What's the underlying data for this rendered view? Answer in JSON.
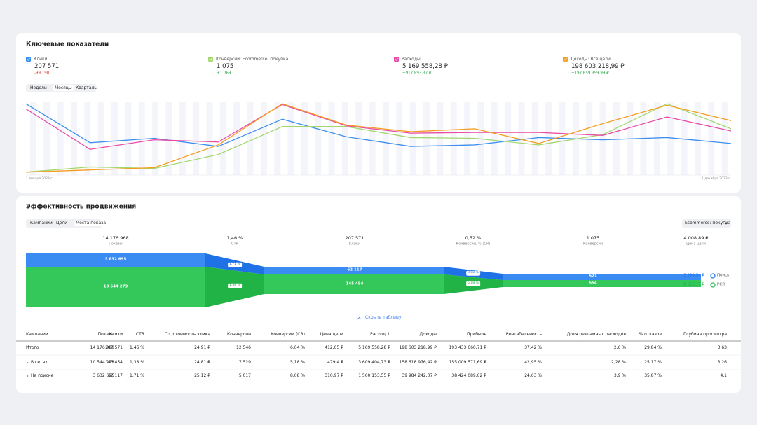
{
  "key_metrics": {
    "title": "Ключевые показатели",
    "tabs": [
      "Недели",
      "Месяцы",
      "Кварталы"
    ]
  },
  "chart_data": {
    "type": "line",
    "categories": [
      "1 января 2023 г.",
      null,
      null,
      null,
      null,
      null,
      null,
      null,
      null,
      null,
      null,
      "1 декабря 2023 г."
    ],
    "ylim": [
      0,
      100
    ],
    "series": [
      {
        "name": "Клики",
        "color": "#3d8fef",
        "total": "207 571",
        "delta": "-99 190",
        "values": [
          97,
          44,
          50,
          39,
          76,
          52,
          39,
          41,
          51,
          48,
          51,
          43
        ]
      },
      {
        "name": "Конверсии: Ecommerce: покупка",
        "color": "#a3d76e",
        "total": "1 075",
        "delta": "+1 069",
        "values": [
          4,
          11,
          9,
          28,
          66,
          66,
          51,
          50,
          41,
          55,
          97,
          63
        ]
      },
      {
        "name": "Расходы",
        "color": "#e84aa5",
        "total": "5 169 558,28 ₽",
        "delta": "+917 893,37 ₽",
        "values": [
          90,
          35,
          48,
          45,
          96,
          67,
          57,
          58,
          58,
          54,
          79,
          60
        ]
      },
      {
        "name": "Доходы: Все цели",
        "color": "#f59d1e",
        "total": "198 603 218,99 ₽",
        "delta": "+197 659 359,99 ₽",
        "values": [
          4,
          7,
          10,
          41,
          97,
          68,
          59,
          63,
          43,
          70,
          95,
          74
        ]
      }
    ]
  },
  "promotion": {
    "title": "Эффективность продвижения",
    "tabs": [
      "Кампании",
      "Цели",
      "Места показа"
    ],
    "goal_select": "Ecommerce: покупка",
    "funnel_header": [
      {
        "value": "14 176 968",
        "label": "Показы"
      },
      {
        "value": "1,46 %",
        "label": "CTR"
      },
      {
        "value": "207 571",
        "label": "Клики"
      },
      {
        "value": "0,52 %",
        "label": "Конверсии, % (CR)"
      },
      {
        "value": "1 075",
        "label": "Конверсии"
      },
      {
        "value": "4 008,89 ₽",
        "label": "Цена цели"
      }
    ],
    "funnel": [
      {
        "name": "Поиск",
        "impressions": "3 632 695",
        "ctr": "1,71 %",
        "clicks": "62 117",
        "cr": "8,08 %",
        "conversions": "521",
        "goal_cost": "2 994,54 ₽"
      },
      {
        "name": "РСЯ",
        "impressions": "10 544 273",
        "ctr": "1,38 %",
        "clicks": "145 454",
        "cr": "5,18 %",
        "conversions": "554",
        "goal_cost": "6 515,17 ₽"
      }
    ],
    "hide_table": "Скрыть таблицу",
    "table": {
      "columns": [
        "Кампании",
        "Показы",
        "Клики",
        "CTR",
        "Ср. стоимость клика",
        "Конверсии",
        "Конверсии (CR)",
        "Цена цели",
        "Расход ↑",
        "Доходы",
        "Прибыль",
        "Рентабельность",
        "Доля рекламных расходов",
        "% отказов",
        "Глубина просмотра"
      ],
      "rows": [
        [
          "Итого",
          "14 176 968",
          "207 571",
          "1,46 %",
          "24,91 ₽",
          "12 546",
          "6,04 %",
          "412,05 ₽",
          "5 169 558,28 ₽",
          "198 603 218,99 ₽",
          "193 433 660,71 ₽",
          "37,42 %",
          "2,6 %",
          "29,84 %",
          "3,63"
        ],
        [
          "В сетях",
          "10 544 273",
          "145 454",
          "1,38 %",
          "24,81 ₽",
          "7 529",
          "5,18 %",
          "479,4 ₽",
          "3 609 404,73 ₽",
          "158 618 976,42 ₽",
          "155 009 571,69 ₽",
          "42,95 %",
          "2,28 %",
          "25,17 %",
          "3,26"
        ],
        [
          "На поиске",
          "3 632 695",
          "62 117",
          "1,71 %",
          "25,12 ₽",
          "5 017",
          "8,08 %",
          "310,97 ₽",
          "1 560 153,55 ₽",
          "39 984 242,07 ₽",
          "38 424 089,02 ₽",
          "24,63 %",
          "3,9 %",
          "35,87 %",
          "4,1"
        ]
      ]
    }
  }
}
